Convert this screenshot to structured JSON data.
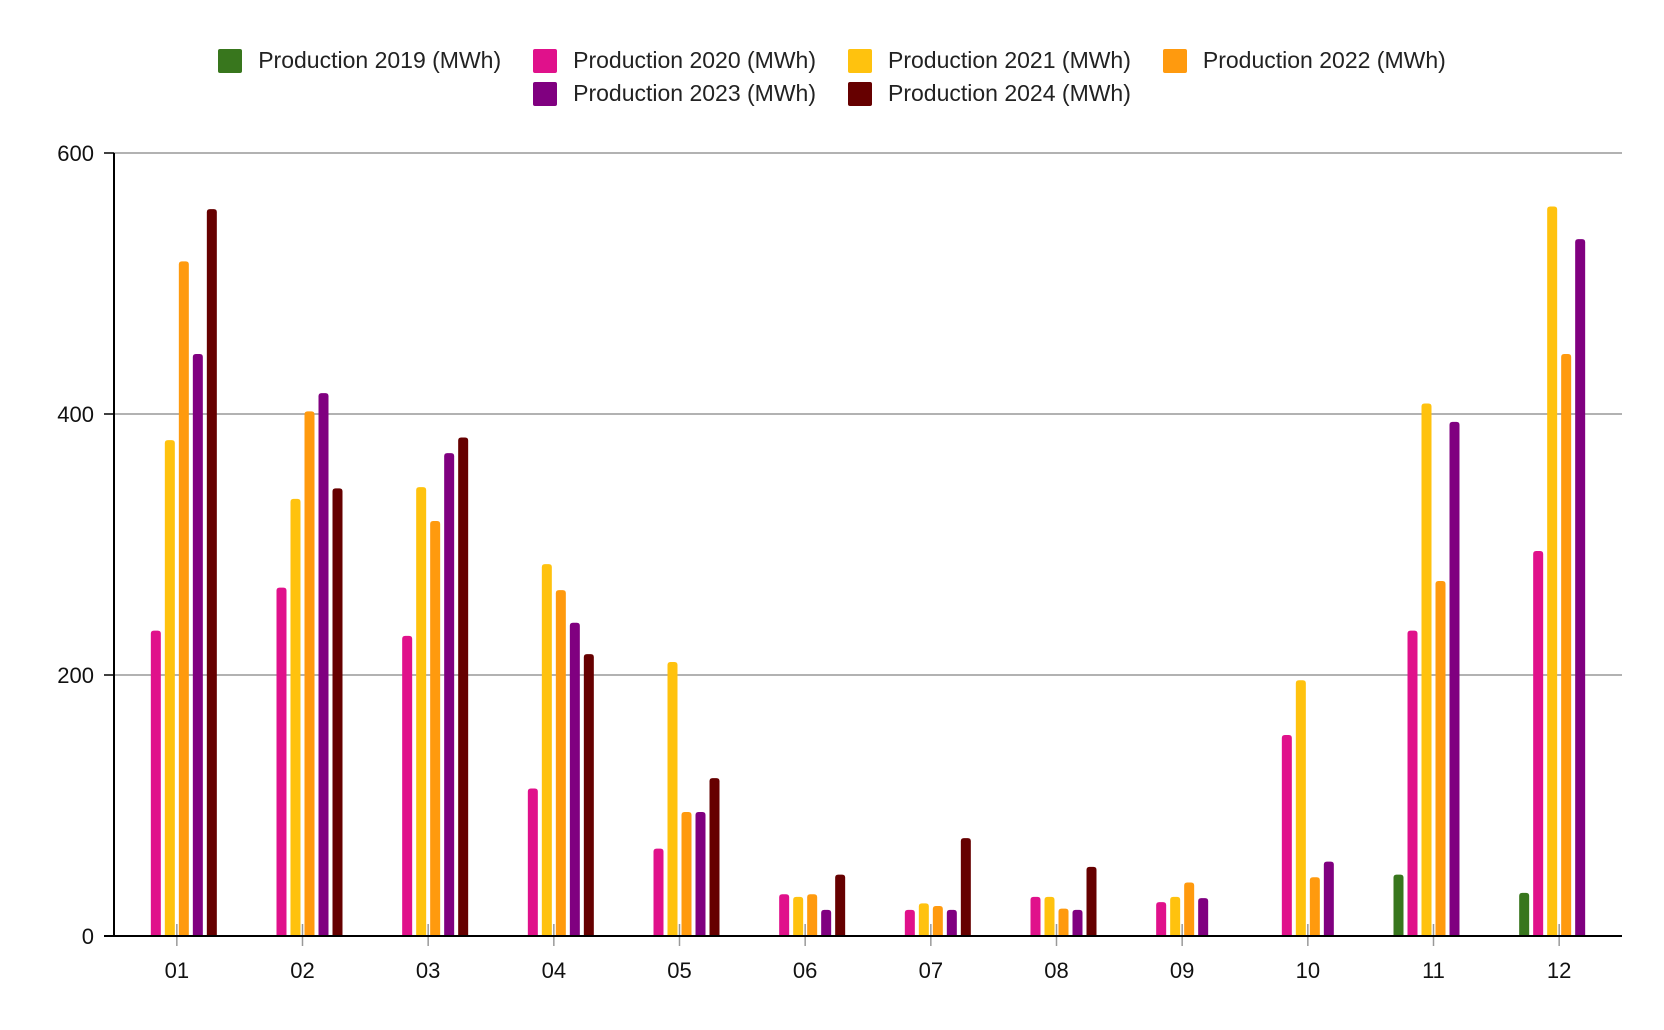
{
  "chart_data": {
    "type": "bar",
    "title": "",
    "xlabel": "",
    "ylabel": "",
    "ylim": [
      0,
      600
    ],
    "yticks": [
      0,
      200,
      400,
      600
    ],
    "categories": [
      "01",
      "02",
      "03",
      "04",
      "05",
      "06",
      "07",
      "08",
      "09",
      "10",
      "11",
      "12"
    ],
    "grid": true,
    "legend_position": "top",
    "series": [
      {
        "name": "Production 2019 (MWh)",
        "color": "#38761d",
        "values": [
          null,
          null,
          null,
          null,
          null,
          null,
          null,
          null,
          null,
          null,
          47,
          33
        ]
      },
      {
        "name": "Production 2020 (MWh)",
        "color": "#e0118b",
        "values": [
          234,
          267,
          230,
          113,
          67,
          32,
          20,
          30,
          26,
          154,
          234,
          295
        ]
      },
      {
        "name": "Production 2021 (MWh)",
        "color": "#ffc20e",
        "values": [
          380,
          335,
          344,
          285,
          210,
          30,
          25,
          30,
          30,
          196,
          408,
          559
        ]
      },
      {
        "name": "Production 2022 (MWh)",
        "color": "#ff9a0e",
        "values": [
          517,
          402,
          318,
          265,
          95,
          32,
          23,
          21,
          41,
          45,
          272,
          446
        ]
      },
      {
        "name": "Production 2023 (MWh)",
        "color": "#800080",
        "values": [
          446,
          416,
          370,
          240,
          95,
          20,
          20,
          20,
          29,
          57,
          394,
          534
        ]
      },
      {
        "name": "Production 2024 (MWh)",
        "color": "#660000",
        "values": [
          557,
          343,
          382,
          216,
          121,
          47,
          75,
          53,
          null,
          null,
          null,
          null
        ]
      }
    ]
  }
}
